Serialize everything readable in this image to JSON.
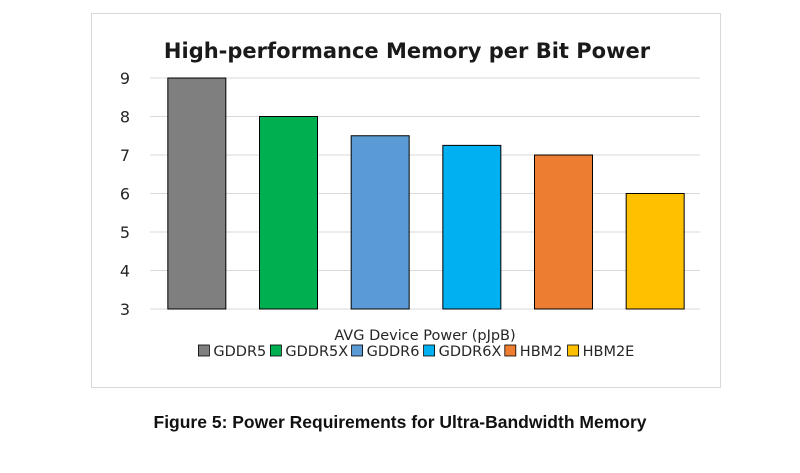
{
  "chart_data": {
    "type": "bar",
    "title": "High-performance Memory per Bit Power",
    "xlabel": "AVG Device Power (pJpB)",
    "ylabel": "",
    "ylim": [
      3,
      9
    ],
    "yticks": [
      "9",
      "8",
      "7",
      "6",
      "5",
      "4",
      "3"
    ],
    "grid": true,
    "legend": "bottom",
    "categories": [
      "GDDR5",
      "GDDR5X",
      "GDDR6",
      "GDDR6X",
      "HBM2",
      "HBM2E"
    ],
    "values": [
      9,
      8,
      7.5,
      7.25,
      7,
      6
    ],
    "colors": [
      "#7f7f7f",
      "#00b050",
      "#5b9bd5",
      "#00b0f0",
      "#ed7d31",
      "#ffc000"
    ]
  },
  "caption": "Figure 5: Power Requirements for Ultra-Bandwidth Memory"
}
